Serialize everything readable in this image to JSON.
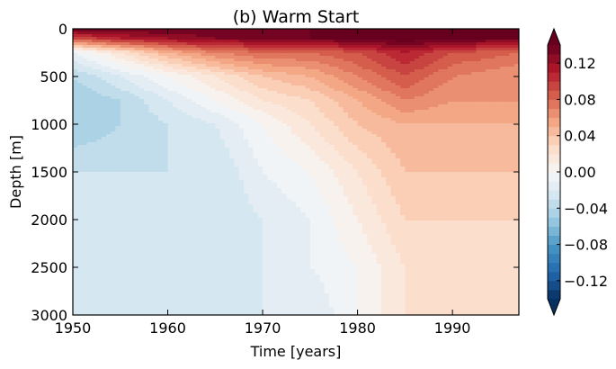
{
  "chart_data": {
    "type": "heatmap",
    "title": "(b) Warm Start",
    "xlabel": "Time [years]",
    "ylabel": "Depth [m]",
    "xlim": [
      1950,
      1997
    ],
    "ylim": [
      3000,
      0
    ],
    "y_inverted": true,
    "x_ticks": [
      1950,
      1960,
      1970,
      1980,
      1990
    ],
    "y_ticks": [
      0,
      500,
      1000,
      1500,
      2000,
      2500,
      3000
    ],
    "colorbar": {
      "colormap": "RdBu_r",
      "range": [
        -0.14,
        0.14
      ],
      "extend": "both",
      "ticks": [
        0.12,
        0.08,
        0.04,
        0.0,
        -0.04,
        -0.08,
        -0.12
      ],
      "tick_labels": [
        "0.12",
        "0.08",
        "0.04",
        "0.00",
        "−0.04",
        "−0.08",
        "−0.12"
      ]
    },
    "x": [
      1950,
      1955,
      1960,
      1965,
      1970,
      1975,
      1980,
      1985,
      1990,
      1997
    ],
    "y": [
      0,
      100,
      250,
      500,
      750,
      1000,
      1500,
      2000,
      2500,
      3000
    ],
    "z": [
      [
        0.14,
        0.14,
        0.14,
        0.14,
        0.14,
        0.14,
        0.14,
        0.14,
        0.14,
        0.14
      ],
      [
        0.09,
        0.11,
        0.12,
        0.13,
        0.13,
        0.14,
        0.14,
        0.15,
        0.14,
        0.14
      ],
      [
        -0.01,
        0.02,
        0.05,
        0.07,
        0.08,
        0.08,
        0.09,
        0.11,
        0.09,
        0.08
      ],
      [
        -0.04,
        -0.02,
        0.0,
        0.02,
        0.04,
        0.05,
        0.07,
        0.09,
        0.07,
        0.06
      ],
      [
        -0.05,
        -0.04,
        -0.02,
        0.0,
        0.02,
        0.03,
        0.05,
        0.07,
        0.06,
        0.06
      ],
      [
        -0.05,
        -0.04,
        -0.03,
        -0.02,
        0.0,
        0.02,
        0.04,
        0.05,
        0.05,
        0.05
      ],
      [
        -0.03,
        -0.03,
        -0.03,
        -0.03,
        -0.01,
        0.0,
        0.02,
        0.04,
        0.04,
        0.04
      ],
      [
        -0.03,
        -0.03,
        -0.03,
        -0.03,
        -0.02,
        -0.01,
        0.01,
        0.03,
        0.03,
        0.03
      ],
      [
        -0.03,
        -0.03,
        -0.03,
        -0.03,
        -0.02,
        -0.01,
        0.0,
        0.02,
        0.02,
        0.03
      ],
      [
        -0.03,
        -0.03,
        -0.03,
        -0.03,
        -0.02,
        -0.02,
        0.0,
        0.02,
        0.02,
        0.03
      ]
    ]
  }
}
